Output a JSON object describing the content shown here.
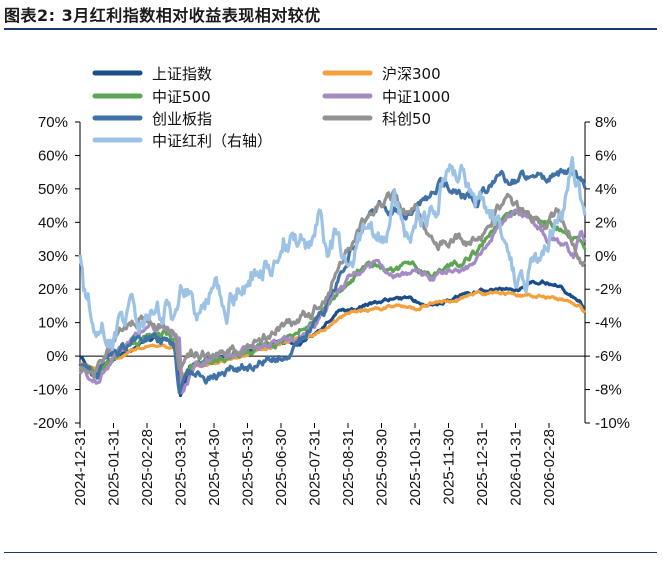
{
  "title": "图表2:  3月红利指数相对收益表现相对较优",
  "chart_data": {
    "type": "line",
    "title": "3月红利指数相对收益表现相对较优",
    "left_axis": {
      "min": -20,
      "max": 70,
      "step": 10,
      "ticks": [
        "70%",
        "60%",
        "50%",
        "40%",
        "30%",
        "20%",
        "10%",
        "0%",
        "-10%",
        "-20%"
      ]
    },
    "right_axis": {
      "min": -10,
      "max": 8,
      "step": 2,
      "ticks": [
        "8%",
        "6%",
        "4%",
        "2%",
        "0%",
        "-2%",
        "-4%",
        "-6%",
        "-8%",
        "-10%"
      ]
    },
    "x_ticks": [
      "2024-12-31",
      "2025-01-31",
      "2025-02-28",
      "2025-03-31",
      "2025-04-30",
      "2025-05-31",
      "2025-06-30",
      "2025-07-31",
      "2025-08-31",
      "2025-09-30",
      "2025-10-31",
      "2025-11-30",
      "2025-12-31",
      "2026-01-31",
      "2026-02-28"
    ],
    "legend": {
      "position": "top-left, two columns"
    },
    "series": [
      {
        "name": "上证指数",
        "axis": "left",
        "color": "#1a4e8a",
        "width": 3.2,
        "anchors": [
          [
            0,
            0
          ],
          [
            12,
            -5
          ],
          [
            25,
            -2
          ],
          [
            40,
            1
          ],
          [
            55,
            4
          ],
          [
            70,
            6
          ],
          [
            82,
            3
          ],
          [
            87,
            -12
          ],
          [
            95,
            -3
          ],
          [
            110,
            -1
          ],
          [
            130,
            0
          ],
          [
            150,
            2
          ],
          [
            170,
            4
          ],
          [
            190,
            4
          ],
          [
            203,
            7
          ],
          [
            210,
            9
          ],
          [
            222,
            13
          ],
          [
            245,
            15
          ],
          [
            265,
            17
          ],
          [
            285,
            17
          ],
          [
            300,
            15
          ],
          [
            320,
            17
          ],
          [
            336,
            19
          ],
          [
            350,
            20
          ],
          [
            365,
            20
          ],
          [
            380,
            20
          ],
          [
            392,
            22
          ],
          [
            405,
            22
          ],
          [
            415,
            21
          ],
          [
            425,
            18
          ],
          [
            433,
            17
          ],
          [
            437,
            14
          ]
        ],
        "amp": 0.8,
        "seed": 1
      },
      {
        "name": "沪深300",
        "axis": "left",
        "color": "#f4a03c",
        "width": 3.2,
        "anchors": [
          [
            0,
            -2
          ],
          [
            15,
            -4
          ],
          [
            30,
            -1
          ],
          [
            45,
            2
          ],
          [
            60,
            3
          ],
          [
            75,
            3
          ],
          [
            86,
            2
          ],
          [
            88,
            -6
          ],
          [
            100,
            -3
          ],
          [
            120,
            -2
          ],
          [
            140,
            0
          ],
          [
            160,
            2
          ],
          [
            175,
            4
          ],
          [
            190,
            5
          ],
          [
            205,
            7
          ],
          [
            220,
            10
          ],
          [
            235,
            13
          ],
          [
            255,
            14
          ],
          [
            275,
            15
          ],
          [
            290,
            14
          ],
          [
            305,
            16
          ],
          [
            325,
            17
          ],
          [
            345,
            19
          ],
          [
            365,
            19
          ],
          [
            385,
            18
          ],
          [
            400,
            18
          ],
          [
            415,
            17
          ],
          [
            425,
            16
          ],
          [
            433,
            15
          ],
          [
            437,
            13
          ]
        ],
        "amp": 0.7,
        "seed": 2
      },
      {
        "name": "中证500",
        "axis": "left",
        "color": "#5ba553",
        "width": 3.2,
        "anchors": [
          [
            0,
            -3
          ],
          [
            15,
            -5
          ],
          [
            30,
            0
          ],
          [
            45,
            4
          ],
          [
            60,
            6
          ],
          [
            75,
            7
          ],
          [
            86,
            4
          ],
          [
            88,
            -8
          ],
          [
            100,
            -2
          ],
          [
            120,
            -1
          ],
          [
            140,
            1
          ],
          [
            160,
            3
          ],
          [
            175,
            4
          ],
          [
            190,
            8
          ],
          [
            200,
            10
          ],
          [
            212,
            15
          ],
          [
            225,
            19
          ],
          [
            240,
            25
          ],
          [
            255,
            27
          ],
          [
            270,
            25
          ],
          [
            285,
            28
          ],
          [
            300,
            25
          ],
          [
            315,
            26
          ],
          [
            330,
            28
          ],
          [
            345,
            32
          ],
          [
            360,
            40
          ],
          [
            372,
            42
          ],
          [
            385,
            43
          ],
          [
            400,
            40
          ],
          [
            415,
            38
          ],
          [
            425,
            36
          ],
          [
            433,
            35
          ],
          [
            437,
            32
          ]
        ],
        "amp": 1.5,
        "seed": 3
      },
      {
        "name": "中证1000",
        "axis": "left",
        "color": "#a58bc4",
        "width": 3.2,
        "anchors": [
          [
            0,
            -4
          ],
          [
            15,
            -7
          ],
          [
            30,
            -1
          ],
          [
            45,
            5
          ],
          [
            60,
            9
          ],
          [
            75,
            8
          ],
          [
            86,
            6
          ],
          [
            88,
            -10
          ],
          [
            100,
            -3
          ],
          [
            120,
            0
          ],
          [
            140,
            2
          ],
          [
            160,
            3
          ],
          [
            175,
            5
          ],
          [
            190,
            6
          ],
          [
            205,
            10
          ],
          [
            218,
            18
          ],
          [
            230,
            22
          ],
          [
            245,
            26
          ],
          [
            260,
            27
          ],
          [
            275,
            24
          ],
          [
            290,
            26
          ],
          [
            305,
            23
          ],
          [
            320,
            26
          ],
          [
            335,
            27
          ],
          [
            350,
            31
          ],
          [
            365,
            40
          ],
          [
            378,
            44
          ],
          [
            390,
            40
          ],
          [
            405,
            35
          ],
          [
            418,
            33
          ],
          [
            427,
            30
          ],
          [
            433,
            37
          ],
          [
            437,
            35
          ]
        ],
        "amp": 1.7,
        "seed": 4
      },
      {
        "name": "创业板指",
        "axis": "left",
        "color": "#3f73a6",
        "width": 3.2,
        "anchors": [
          [
            0,
            -2
          ],
          [
            15,
            -5
          ],
          [
            25,
            0
          ],
          [
            40,
            3
          ],
          [
            55,
            6
          ],
          [
            70,
            5
          ],
          [
            82,
            2
          ],
          [
            86,
            -12
          ],
          [
            95,
            -6
          ],
          [
            110,
            -7
          ],
          [
            125,
            -5
          ],
          [
            140,
            -3
          ],
          [
            155,
            -2
          ],
          [
            170,
            0
          ],
          [
            185,
            2
          ],
          [
            200,
            8
          ],
          [
            212,
            14
          ],
          [
            222,
            22
          ],
          [
            230,
            28
          ],
          [
            240,
            36
          ],
          [
            252,
            42
          ],
          [
            262,
            45
          ],
          [
            272,
            44
          ],
          [
            282,
            40
          ],
          [
            292,
            46
          ],
          [
            302,
            48
          ],
          [
            312,
            52
          ],
          [
            322,
            50
          ],
          [
            332,
            48
          ],
          [
            342,
            46
          ],
          [
            352,
            50
          ],
          [
            362,
            54
          ],
          [
            372,
            52
          ],
          [
            382,
            54
          ],
          [
            392,
            55
          ],
          [
            402,
            53
          ],
          [
            412,
            55
          ],
          [
            422,
            56
          ],
          [
            430,
            54
          ],
          [
            437,
            52
          ]
        ],
        "amp": 2.2,
        "seed": 5
      },
      {
        "name": "科创50",
        "axis": "left",
        "color": "#929292",
        "width": 3.2,
        "anchors": [
          [
            0,
            -4
          ],
          [
            12,
            -6
          ],
          [
            25,
            1
          ],
          [
            35,
            8
          ],
          [
            45,
            10
          ],
          [
            55,
            11
          ],
          [
            65,
            9
          ],
          [
            75,
            6
          ],
          [
            82,
            5
          ],
          [
            86,
            -3
          ],
          [
            95,
            0
          ],
          [
            110,
            1
          ],
          [
            130,
            2
          ],
          [
            150,
            4
          ],
          [
            170,
            8
          ],
          [
            185,
            10
          ],
          [
            200,
            13
          ],
          [
            212,
            18
          ],
          [
            222,
            24
          ],
          [
            232,
            32
          ],
          [
            240,
            38
          ],
          [
            250,
            42
          ],
          [
            262,
            46
          ],
          [
            272,
            48
          ],
          [
            282,
            42
          ],
          [
            292,
            45
          ],
          [
            300,
            35
          ],
          [
            310,
            34
          ],
          [
            320,
            34
          ],
          [
            330,
            35
          ],
          [
            342,
            34
          ],
          [
            352,
            37
          ],
          [
            362,
            45
          ],
          [
            372,
            47
          ],
          [
            382,
            43
          ],
          [
            392,
            42
          ],
          [
            402,
            40
          ],
          [
            412,
            43
          ],
          [
            420,
            39
          ],
          [
            428,
            33
          ],
          [
            433,
            30
          ],
          [
            437,
            28
          ]
        ],
        "amp": 2.4,
        "seed": 6
      },
      {
        "name": "中证红利（右轴）",
        "axis": "right",
        "color": "#9cc2e5",
        "width": 3.2,
        "anchors": [
          [
            0,
            0
          ],
          [
            3,
            -2
          ],
          [
            8,
            -3
          ],
          [
            14,
            -5
          ],
          [
            20,
            -4
          ],
          [
            28,
            -5
          ],
          [
            36,
            -4
          ],
          [
            44,
            -3
          ],
          [
            52,
            -4
          ],
          [
            60,
            -3
          ],
          [
            68,
            -3
          ],
          [
            76,
            -3
          ],
          [
            82,
            -4
          ],
          [
            88,
            -2
          ],
          [
            93,
            -2
          ],
          [
            100,
            -3
          ],
          [
            108,
            -3
          ],
          [
            118,
            -2
          ],
          [
            128,
            -3
          ],
          [
            138,
            -2
          ],
          [
            148,
            -1
          ],
          [
            158,
            -1
          ],
          [
            168,
            0
          ],
          [
            176,
            1
          ],
          [
            184,
            1
          ],
          [
            192,
            1
          ],
          [
            200,
            1
          ],
          [
            208,
            2
          ],
          [
            215,
            0
          ],
          [
            222,
            1
          ],
          [
            232,
            0
          ],
          [
            242,
            1
          ],
          [
            250,
            2
          ],
          [
            258,
            1
          ],
          [
            265,
            1
          ],
          [
            272,
            3
          ],
          [
            278,
            2
          ],
          [
            285,
            1
          ],
          [
            292,
            3
          ],
          [
            300,
            2
          ],
          [
            308,
            3
          ],
          [
            316,
            5
          ],
          [
            322,
            6
          ],
          [
            330,
            5
          ],
          [
            338,
            4
          ],
          [
            346,
            3
          ],
          [
            352,
            3
          ],
          [
            360,
            2
          ],
          [
            368,
            1
          ],
          [
            375,
            -1
          ],
          [
            382,
            -2
          ],
          [
            390,
            -1
          ],
          [
            398,
            0
          ],
          [
            406,
            1
          ],
          [
            414,
            2
          ],
          [
            420,
            3
          ],
          [
            425,
            6
          ],
          [
            430,
            5
          ],
          [
            434,
            3
          ],
          [
            437,
            2
          ]
        ],
        "amp": 1.1,
        "seed": 7
      }
    ]
  }
}
